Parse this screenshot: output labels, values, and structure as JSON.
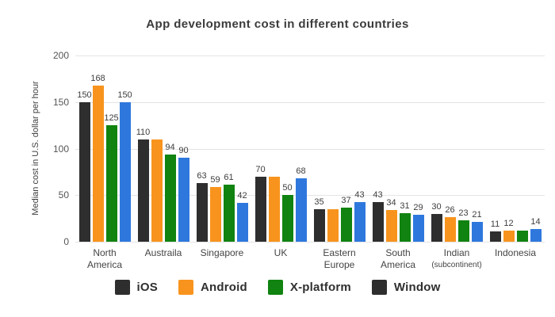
{
  "chart_data": {
    "type": "bar",
    "title": "App development cost in different countries",
    "xlabel": "",
    "ylabel": "Median cost in U.S. dollar per hour",
    "ylim": [
      0,
      200
    ],
    "yticks": [
      0,
      50,
      100,
      150,
      200
    ],
    "grid": true,
    "legend_position": "bottom",
    "background": "#ffffff",
    "gridline_color": "#e4e4e4",
    "categories": [
      {
        "slug": "north-america",
        "lines": [
          "North",
          "America"
        ]
      },
      {
        "slug": "austraila",
        "lines": [
          "Austraila"
        ]
      },
      {
        "slug": "singapore",
        "lines": [
          "Singapore"
        ]
      },
      {
        "slug": "uk",
        "lines": [
          "UK"
        ]
      },
      {
        "slug": "eastern-europe",
        "lines": [
          "Eastern",
          "Europe"
        ]
      },
      {
        "slug": "south-america",
        "lines": [
          "South",
          "America"
        ]
      },
      {
        "slug": "indian-subcontinent",
        "lines": [
          "Indian",
          "(subcontinent)"
        ],
        "line2_small": true
      },
      {
        "slug": "indonesia",
        "lines": [
          "Indonesia"
        ]
      }
    ],
    "series": [
      {
        "name": "iOS",
        "slug": "ios",
        "color": "#2e2e2e",
        "values": [
          150,
          110,
          63,
          70,
          35,
          43,
          30,
          11
        ],
        "labels": [
          "150",
          "110",
          "63",
          "70",
          "35",
          "43",
          "30",
          "11"
        ]
      },
      {
        "name": "Android",
        "slug": "android",
        "color": "#f8941d",
        "values": [
          168,
          110,
          59,
          70,
          35,
          34,
          26,
          12
        ],
        "labels": [
          "168",
          "",
          "59",
          "",
          "",
          "34",
          "26",
          "12"
        ]
      },
      {
        "name": "X-platform",
        "slug": "x-platform",
        "color": "#108310",
        "values": [
          125,
          94,
          61,
          50,
          37,
          31,
          23,
          12
        ],
        "labels": [
          "125",
          "94",
          "61",
          "50",
          "37",
          "31",
          "23",
          ""
        ]
      },
      {
        "name": "Window",
        "slug": "window",
        "color": "#2e78dd",
        "values": [
          150,
          90,
          42,
          68,
          43,
          29,
          21,
          14
        ],
        "labels": [
          "150",
          "90",
          "42",
          "68",
          "43",
          "29",
          "21",
          "14"
        ]
      }
    ],
    "legend_items": [
      {
        "label": "iOS",
        "slug": "ios",
        "swatch_color": "#2e2e2e"
      },
      {
        "label": "Android",
        "slug": "android",
        "swatch_color": "#f8941d"
      },
      {
        "label": "X-platform",
        "slug": "x-platform",
        "swatch_color": "#108310"
      },
      {
        "label": "Window",
        "slug": "window",
        "swatch_color": "#2e2e2e"
      }
    ]
  }
}
